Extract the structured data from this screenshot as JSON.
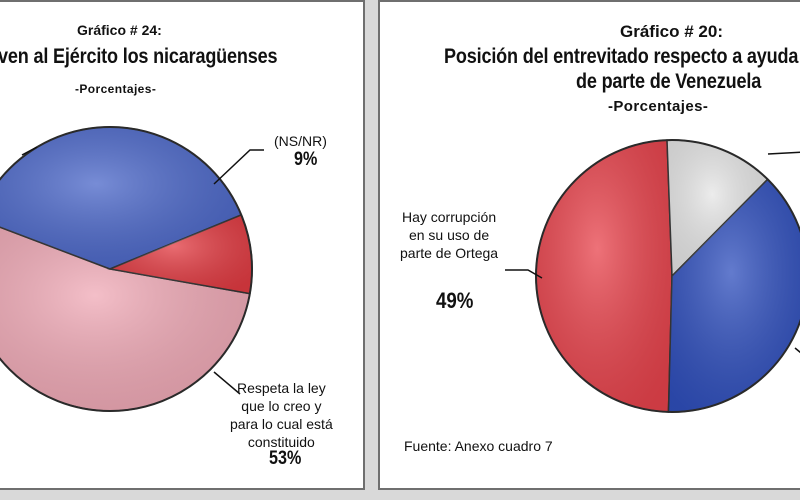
{
  "left_chart": {
    "label": "Gráfico # 24:",
    "title": "ven al Ejército los nicaragüenses",
    "subtitle": "-Porcentajes-"
  },
  "right_chart": {
    "label": "Gráfico # 20:",
    "title_line1": "Posición del entrevitado respecto a ayuda",
    "title_line2": "de parte de Venezuela",
    "subtitle": "-Porcentajes-",
    "source": "Fuente: Anexo cuadro 7"
  },
  "chart_data": [
    {
      "type": "pie",
      "title": "ven al Ejército los nicaragüenses",
      "subtitle": "-Porcentajes-",
      "slices": [
        {
          "label": "Respeta la ley\nque lo creo y\npara lo cual está\nconstituido",
          "pct_label": "53%",
          "value": 53,
          "color": "#f0a9b6"
        },
        {
          "label": "",
          "pct_label": "",
          "value": 38,
          "color": "#4a66c8"
        },
        {
          "label": "(NS/NR)",
          "pct_label": "9%",
          "value": 9,
          "color": "#e23b42"
        }
      ]
    },
    {
      "type": "pie",
      "title": "Posición del entrevitado respecto a ayuda de parte de Venezuela",
      "subtitle": "-Porcentajes-",
      "slices": [
        {
          "label": "Hay corrupción\nen su uso de\nparte de Ortega",
          "pct_label": "49%",
          "value": 49,
          "color": "#e8434c"
        },
        {
          "label": "",
          "pct_label": "",
          "value": 13,
          "color": "#e6e6e6"
        },
        {
          "label": "",
          "pct_label": "",
          "value": 38,
          "color": "#2f4fbd"
        }
      ],
      "source": "Fuente: Anexo cuadro 7"
    }
  ]
}
